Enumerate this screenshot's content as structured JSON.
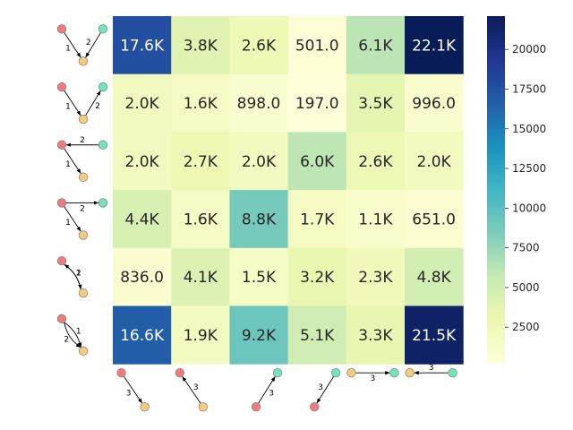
{
  "chart_data": {
    "type": "heatmap",
    "title": "",
    "xlabel": "",
    "ylabel": "",
    "rows": 6,
    "cols": 6,
    "values": [
      [
        17600,
        3800,
        2600,
        501.0,
        6100,
        22100
      ],
      [
        2000,
        1600,
        898.0,
        197.0,
        3500,
        996.0
      ],
      [
        2000,
        2700,
        2000,
        6000,
        2600,
        2000
      ],
      [
        4400,
        1600,
        8800,
        1700,
        1100,
        651.0
      ],
      [
        836.0,
        4100,
        1500,
        3200,
        2300,
        4800
      ],
      [
        16600,
        1900,
        9200,
        5100,
        3300,
        21500
      ]
    ],
    "cell_labels": [
      [
        "17.6K",
        "3.8K",
        "2.6K",
        "501.0",
        "6.1K",
        "22.1K"
      ],
      [
        "2.0K",
        "1.6K",
        "898.0",
        "197.0",
        "3.5K",
        "996.0"
      ],
      [
        "2.0K",
        "2.7K",
        "2.0K",
        "6.0K",
        "2.6K",
        "2.0K"
      ],
      [
        "4.4K",
        "1.6K",
        "8.8K",
        "1.7K",
        "1.1K",
        "651.0"
      ],
      [
        "836.0",
        "4.1K",
        "1.5K",
        "3.2K",
        "2.3K",
        "4.8K"
      ],
      [
        "16.6K",
        "1.9K",
        "9.2K",
        "5.1K",
        "3.3K",
        "21.5K"
      ]
    ],
    "colorbar": {
      "colormap": "YlGnBu",
      "range": [
        197,
        22100
      ],
      "ticks": [
        2500,
        5000,
        7500,
        10000,
        12500,
        15000,
        17500,
        20000
      ],
      "tick_labels": [
        "2500",
        "5000",
        "7500",
        "10000",
        "12500",
        "15000",
        "17500",
        "20000"
      ]
    },
    "row_motifs": [
      {
        "name": "row-motif-0",
        "edges": [
          {
            "from": "ca",
            "to": "ba",
            "label": "2"
          },
          {
            "from": "aa",
            "to": "ba",
            "label": "1"
          }
        ]
      },
      {
        "name": "row-motif-1",
        "edges": [
          {
            "from": "ba",
            "to": "ca",
            "label": "2"
          },
          {
            "from": "aa",
            "to": "ba",
            "label": "1"
          }
        ]
      },
      {
        "name": "row-motif-2",
        "edges": [
          {
            "from": "ca",
            "to": "aa",
            "label": "2"
          },
          {
            "from": "aa",
            "to": "ba",
            "label": "1"
          }
        ]
      },
      {
        "name": "row-motif-3",
        "edges": [
          {
            "from": "aa",
            "to": "ca",
            "label": "2"
          },
          {
            "from": "aa",
            "to": "ba",
            "label": "1"
          }
        ]
      },
      {
        "name": "row-motif-4",
        "edges": [
          {
            "from": "ba",
            "to": "aa",
            "label": "2"
          },
          {
            "from": "aa",
            "to": "ba",
            "label": "1"
          }
        ]
      },
      {
        "name": "row-motif-5",
        "edges": [
          {
            "from": "aa",
            "to": "ba",
            "label": "2"
          },
          {
            "from": "aa",
            "to": "ba",
            "label": "1"
          }
        ]
      }
    ],
    "col_motifs": [
      {
        "name": "col-motif-0",
        "edges": [
          {
            "from": "aa",
            "to": "ba",
            "label": "3"
          }
        ]
      },
      {
        "name": "col-motif-1",
        "edges": [
          {
            "from": "ba",
            "to": "aa",
            "label": "3"
          }
        ]
      },
      {
        "name": "col-motif-2",
        "edges": [
          {
            "from": "aa",
            "to": "ca",
            "label": "3"
          }
        ]
      },
      {
        "name": "col-motif-3",
        "edges": [
          {
            "from": "ca",
            "to": "aa",
            "label": "3"
          }
        ]
      },
      {
        "name": "col-motif-4",
        "edges": [
          {
            "from": "ba",
            "to": "ca",
            "label": "3"
          }
        ]
      },
      {
        "name": "col-motif-5",
        "edges": [
          {
            "from": "ca",
            "to": "ba",
            "label": "3"
          }
        ]
      }
    ]
  },
  "colors": {
    "node_red": "#ef7b7b",
    "node_green": "#6fe5c1",
    "node_yellow": "#f5cd7a",
    "node_stroke": "#8a8a8a",
    "text_light": "#ffffff",
    "text_dark": "#262626"
  }
}
